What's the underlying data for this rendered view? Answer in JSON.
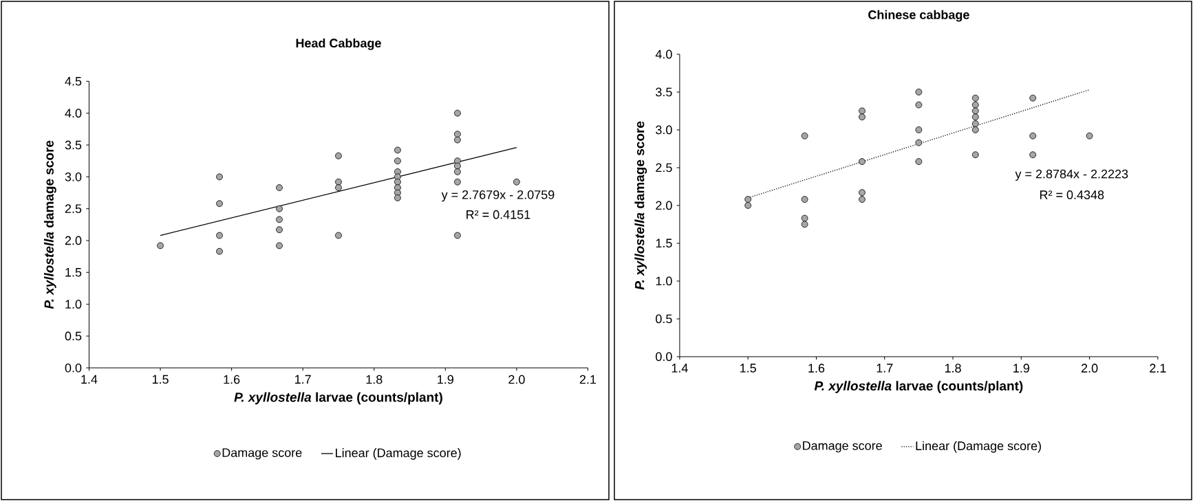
{
  "chart_data": [
    {
      "type": "scatter",
      "title": "Head Cabbage",
      "xlabel": "*P. xyllostella* larvae (counts/plant)",
      "ylabel": "*P. xyllostella* damage score",
      "xlim": [
        1.4,
        2.1
      ],
      "ylim": [
        0,
        4.5
      ],
      "xticks": [
        1.4,
        1.5,
        1.6,
        1.7,
        1.8,
        1.9,
        {
          "value": 2.0,
          "label": "2.0"
        },
        2.1
      ],
      "yticks": [
        {
          "value": 0,
          "label": "0.0"
        },
        0.5,
        {
          "value": 1,
          "label": "1.0"
        },
        1.5,
        {
          "value": 2,
          "label": "2.0"
        },
        2.5,
        {
          "value": 3,
          "label": "3.0"
        },
        3.5,
        {
          "value": 4,
          "label": "4.0"
        },
        4.5
      ],
      "grid": false,
      "legend": "bottom",
      "annotations": [
        "y = 2.7679x - 2.0759",
        "R² = 0.4151"
      ],
      "series": [
        {
          "name": "Damage score",
          "marker": "circle",
          "color": "#a6a6a6",
          "x": [
            1.5,
            1.583,
            1.583,
            1.583,
            1.583,
            1.667,
            1.667,
            1.667,
            1.667,
            1.667,
            1.75,
            1.75,
            1.75,
            1.75,
            1.833,
            1.833,
            1.833,
            1.833,
            1.833,
            1.833,
            1.833,
            1.833,
            1.917,
            1.917,
            1.917,
            1.917,
            1.917,
            1.917,
            1.917,
            1.917,
            2.0
          ],
          "values": [
            1.92,
            3.0,
            2.58,
            2.08,
            1.83,
            2.83,
            2.5,
            2.33,
            2.17,
            1.92,
            3.33,
            2.92,
            2.83,
            2.08,
            3.42,
            3.25,
            3.08,
            3.0,
            2.92,
            2.83,
            2.75,
            2.67,
            4.0,
            3.67,
            3.58,
            3.25,
            3.17,
            3.08,
            2.92,
            2.08,
            2.92
          ]
        },
        {
          "name": "Linear (Damage score)",
          "type": "line",
          "line_style": "solid",
          "color": "#000000",
          "marker": "none",
          "x": [
            1.5,
            2.0
          ],
          "values": [
            2.08,
            3.46
          ]
        }
      ]
    },
    {
      "type": "scatter",
      "title": "Chinese cabbage",
      "xlabel": "*P. xyllostella* larvae (counts/plant)",
      "ylabel": "*P. xyllostella* damage score",
      "xlim": [
        1.4,
        2.1
      ],
      "ylim": [
        0,
        4.0
      ],
      "xticks": [
        1.4,
        1.5,
        1.6,
        1.7,
        1.8,
        1.9,
        {
          "value": 2.0,
          "label": "2.0"
        },
        2.1
      ],
      "yticks": [
        {
          "value": 0,
          "label": "0.0"
        },
        0.5,
        {
          "value": 1,
          "label": "1.0"
        },
        1.5,
        {
          "value": 2,
          "label": "2.0"
        },
        2.5,
        {
          "value": 3,
          "label": "3.0"
        },
        3.5,
        {
          "value": 4,
          "label": "4.0"
        }
      ],
      "grid": false,
      "legend": "bottom",
      "annotations": [
        "y = 2.8784x - 2.2223",
        "R² = 0.4348"
      ],
      "series": [
        {
          "name": "Damage score",
          "marker": "circle",
          "color": "#a6a6a6",
          "x": [
            1.5,
            1.5,
            1.583,
            1.583,
            1.583,
            1.583,
            1.667,
            1.667,
            1.667,
            1.667,
            1.667,
            1.75,
            1.75,
            1.75,
            1.75,
            1.75,
            1.833,
            1.833,
            1.833,
            1.833,
            1.833,
            1.833,
            1.833,
            1.917,
            1.917,
            1.917,
            2.0
          ],
          "values": [
            2.08,
            2.0,
            2.92,
            2.08,
            1.83,
            1.75,
            3.25,
            3.17,
            2.58,
            2.17,
            2.08,
            3.5,
            3.33,
            3.0,
            2.83,
            2.58,
            3.42,
            3.33,
            3.25,
            3.17,
            3.08,
            3.0,
            2.67,
            3.42,
            2.92,
            2.67,
            2.92
          ]
        },
        {
          "name": "Linear (Damage score)",
          "type": "line",
          "line_style": "dotted",
          "color": "#000000",
          "marker": "none",
          "x": [
            1.5,
            2.0
          ],
          "values": [
            2.1,
            3.53
          ]
        }
      ]
    }
  ]
}
